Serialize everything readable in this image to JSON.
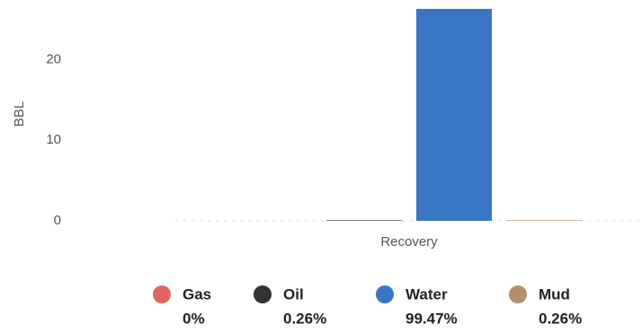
{
  "chart_data": {
    "type": "bar",
    "y_label": "BBL",
    "categories": [
      "Recovery"
    ],
    "series": [
      {
        "name": "Gas",
        "color": "#e06666",
        "values": [
          0
        ],
        "share": 0,
        "share_label": "0%"
      },
      {
        "name": "Oil",
        "color": "#333333",
        "values": [
          0.07
        ],
        "share": 0.26,
        "share_label": "0.26%"
      },
      {
        "name": "Water",
        "color": "#3a75c4",
        "values": [
          26.3
        ],
        "share": 99.47,
        "share_label": "99.47%"
      },
      {
        "name": "Mud",
        "color": "#b09070",
        "values": [
          0.07
        ],
        "share": 0.26,
        "share_label": "0.26%"
      }
    ],
    "ylim": [
      0,
      26.4
    ],
    "yticks": [
      0,
      10,
      20
    ],
    "grid": false
  }
}
